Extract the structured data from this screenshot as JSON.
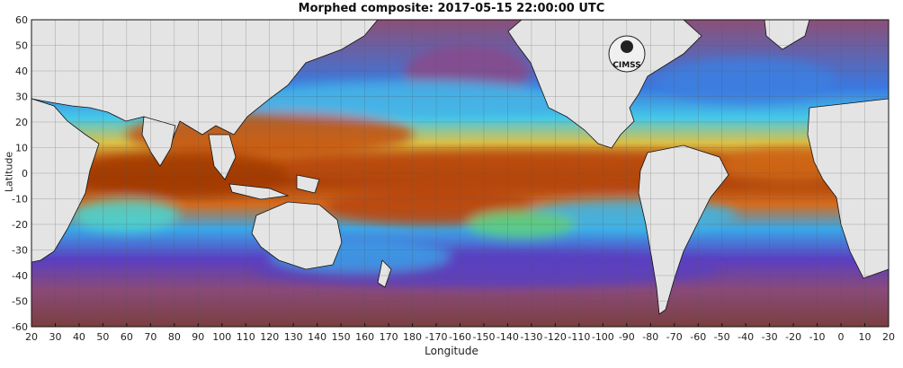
{
  "title": "Morphed composite: 2017-05-15 22:00:00 UTC",
  "xlabel": "Longitude",
  "ylabel": "Latitude",
  "logo_text": "CIMSS",
  "x_ticks": [
    "20",
    "30",
    "40",
    "50",
    "60",
    "70",
    "80",
    "90",
    "100",
    "110",
    "120",
    "130",
    "140",
    "150",
    "160",
    "170",
    "180",
    "-170",
    "-160",
    "-150",
    "-140",
    "-130",
    "-120",
    "-110",
    "-100",
    "-90",
    "-80",
    "-70",
    "-60",
    "-50",
    "-40",
    "-30",
    "-20",
    "-10",
    "0",
    "10",
    "20"
  ],
  "y_ticks": [
    "60",
    "50",
    "40",
    "30",
    "20",
    "10",
    "0",
    "-10",
    "-20",
    "-30",
    "-40",
    "-50",
    "-60"
  ],
  "colors": {
    "land": "#e4e4e4",
    "ocean_dry": "#7a3f6a",
    "ocean_mid": "#8a4a2e",
    "moist_blue": "#3aa8e8",
    "moist_cyan": "#4fe0d8",
    "moist_green": "#6fd86a",
    "moist_yellow": "#e9e45a",
    "moist_orange": "#e07a1e",
    "moist_dark": "#8a2a05",
    "purple": "#6a38c8"
  }
}
